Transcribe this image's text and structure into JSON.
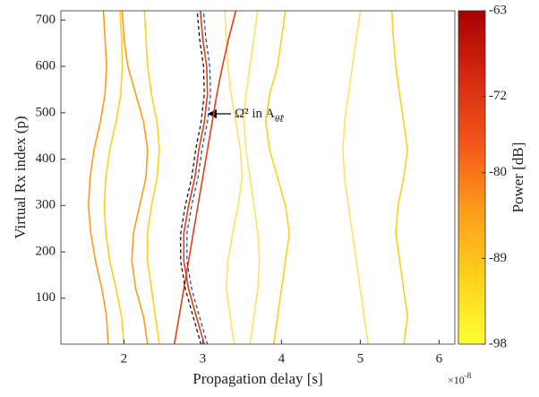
{
  "chart_data": {
    "type": "line",
    "x_label": "Propagation delay [s]",
    "x_multiplier": "×10",
    "x_multiplier_exp": "-8",
    "y_label": "Virtual Rx index (p)",
    "colorbar_label": "Power [dB]",
    "annotation": "Ω̂² in A",
    "annotation_sub": "θ̂ℓ",
    "xlim": [
      1.2,
      6.2
    ],
    "xticks": [
      2,
      3,
      4,
      5,
      6
    ],
    "ylim": [
      1,
      720
    ],
    "yticks": [
      100,
      200,
      300,
      400,
      500,
      600,
      700
    ],
    "clim": [
      -98,
      -63
    ],
    "cticks": [
      -63,
      -72,
      -80,
      -89,
      -98
    ],
    "colormap": [
      "#ffff33",
      "#ffd11a",
      "#ff9c1a",
      "#f2571a",
      "#d42a10",
      "#a80000"
    ],
    "y": [
      0,
      60,
      120,
      180,
      240,
      300,
      360,
      420,
      480,
      540,
      600,
      660,
      720
    ],
    "series": [
      {
        "color": "#ff9c1a",
        "dash": false,
        "x": [
          1.8,
          1.78,
          1.72,
          1.64,
          1.58,
          1.55,
          1.57,
          1.62,
          1.7,
          1.76,
          1.78,
          1.76,
          1.74
        ]
      },
      {
        "color": "#ffd11a",
        "dash": false,
        "x": [
          2.0,
          1.97,
          1.9,
          1.82,
          1.77,
          1.75,
          1.77,
          1.82,
          1.9,
          1.96,
          1.98,
          1.97,
          1.95
        ]
      },
      {
        "color": "#ff9c1a",
        "dash": false,
        "x": [
          2.3,
          2.25,
          2.15,
          2.1,
          2.12,
          2.2,
          2.28,
          2.3,
          2.25,
          2.15,
          2.05,
          2.0,
          1.98
        ]
      },
      {
        "color": "#ffd11a",
        "dash": false,
        "x": [
          2.45,
          2.4,
          2.35,
          2.3,
          2.3,
          2.35,
          2.42,
          2.45,
          2.42,
          2.35,
          2.3,
          2.28,
          2.26
        ]
      },
      {
        "color": "#ffe066",
        "dash": false,
        "x": [
          3.4,
          3.35,
          3.3,
          3.32,
          3.38,
          3.45,
          3.5,
          3.48,
          3.42,
          3.36,
          3.32,
          3.3,
          3.28
        ]
      },
      {
        "color": "#ffe066",
        "dash": false,
        "x": [
          3.6,
          3.65,
          3.7,
          3.72,
          3.7,
          3.65,
          3.6,
          3.55,
          3.52,
          3.55,
          3.6,
          3.65,
          3.7
        ]
      },
      {
        "color": "#ffd11a",
        "dash": false,
        "x": [
          3.9,
          3.95,
          4.0,
          4.05,
          4.1,
          4.05,
          3.95,
          3.85,
          3.8,
          3.85,
          3.95,
          4.0,
          4.05
        ]
      },
      {
        "color": "#e0401a",
        "dash": false,
        "x": [
          2.64,
          2.7,
          2.76,
          2.82,
          2.88,
          2.94,
          3.0,
          3.06,
          3.12,
          3.18,
          3.25,
          3.33,
          3.42
        ]
      },
      {
        "color": "#e0401a",
        "dash": false,
        "x": [
          3.02,
          2.92,
          2.82,
          2.76,
          2.76,
          2.82,
          2.9,
          2.95,
          3.02,
          3.06,
          3.05,
          3.0,
          2.97
        ]
      },
      {
        "color": "#000000",
        "dash": true,
        "x": [
          2.98,
          2.88,
          2.78,
          2.72,
          2.72,
          2.78,
          2.86,
          2.91,
          2.98,
          3.02,
          3.01,
          2.96,
          2.93
        ]
      },
      {
        "color": "#1a3fbf",
        "dash": true,
        "x": [
          3.06,
          2.96,
          2.86,
          2.8,
          2.8,
          2.86,
          2.94,
          2.99,
          3.06,
          3.1,
          3.09,
          3.04,
          3.01
        ]
      },
      {
        "color": "#ffe066",
        "dash": false,
        "x": [
          5.1,
          5.05,
          5.0,
          4.95,
          4.9,
          4.85,
          4.8,
          4.78,
          4.8,
          4.85,
          4.9,
          4.95,
          5.0
        ]
      },
      {
        "color": "#ffd11a",
        "dash": false,
        "x": [
          5.55,
          5.6,
          5.55,
          5.5,
          5.45,
          5.48,
          5.55,
          5.6,
          5.55,
          5.5,
          5.45,
          5.42,
          5.4
        ]
      }
    ]
  }
}
